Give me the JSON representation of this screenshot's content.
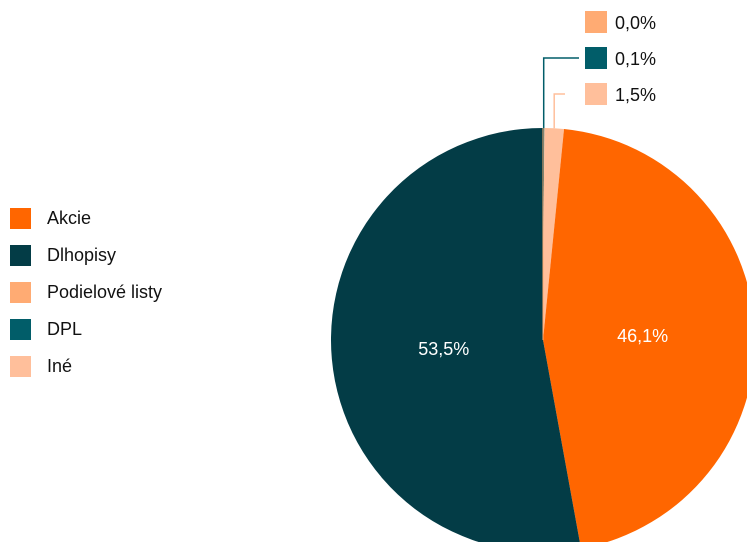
{
  "chart_data": {
    "type": "pie",
    "categories": [
      "Akcie",
      "Dlhopisy",
      "Podielové listy",
      "DPL",
      "Iné"
    ],
    "values": [
      46.1,
      53.5,
      0.0,
      0.1,
      1.5
    ],
    "data_labels": [
      "46,1%",
      "53,5%",
      "0,0%",
      "0,1%",
      "1,5%"
    ],
    "colors": [
      "#ff6600",
      "#033c46",
      "#ffab73",
      "#015d69",
      "#ffbf9b"
    ],
    "label_colors": [
      "#ffffff",
      "#ffffff",
      "#111111",
      "#111111",
      "#111111"
    ],
    "legend_position": "left",
    "start_angle_deg": 0,
    "direction": "clockwise",
    "small_slice_labels": "outside with leader lines, top"
  }
}
